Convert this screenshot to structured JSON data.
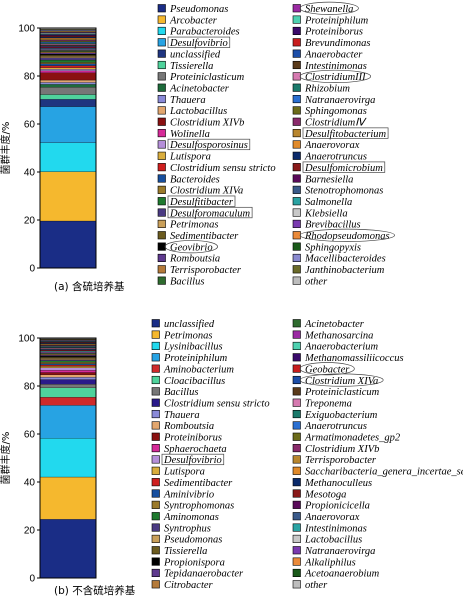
{
  "chart_data": [
    {
      "type": "bar",
      "stacked": true,
      "caption": "(a) 含硫培养基",
      "ylabel": "菌群丰度/%",
      "ylim": [
        0,
        100
      ],
      "yticks": [
        0,
        20,
        40,
        60,
        80,
        100
      ],
      "legend_columns": 2,
      "series": [
        {
          "name": "Pseudomonas",
          "value": 19.5,
          "color": "#1a2d86"
        },
        {
          "name": "Arcobacter",
          "value": 20.5,
          "color": "#f5b82e"
        },
        {
          "name": "Parabacteroides",
          "value": 12.0,
          "color": "#22d9ee"
        },
        {
          "name": "Desulfovibrio",
          "value": 15.0,
          "color": "#27a3e3",
          "boxed": true
        },
        {
          "name": "unclassified",
          "value": 3.0,
          "color": "#1f3580"
        },
        {
          "name": "Tissierella",
          "value": 2.0,
          "color": "#4fd39c"
        },
        {
          "name": "Proteiniclasticum",
          "value": 3.0,
          "color": "#777777"
        },
        {
          "name": "Acinetobacter",
          "value": 1.2,
          "color": "#1d6b3b"
        },
        {
          "name": "Thauera",
          "value": 0.8,
          "color": "#8a8ad8"
        },
        {
          "name": "Lactobacillus",
          "value": 1.0,
          "color": "#e2a66e"
        },
        {
          "name": "Clostridium XIVb",
          "value": 3.0,
          "color": "#8a1111"
        },
        {
          "name": "Wolinella",
          "value": 0.8,
          "color": "#d62a98"
        },
        {
          "name": "Desulfosporosinus",
          "value": 0.7,
          "color": "#b58fd9",
          "boxed": true
        },
        {
          "name": "Lutispora",
          "value": 0.6,
          "color": "#d9ad3d"
        },
        {
          "name": "Clostridium sensu stricto",
          "value": 0.9,
          "color": "#cf1f1f"
        },
        {
          "name": "Bacteroides",
          "value": 0.8,
          "color": "#174f9e"
        },
        {
          "name": "Clostridium XIVa",
          "value": 0.5,
          "color": "#9b7a2a"
        },
        {
          "name": "Desulfitibacter",
          "value": 1.0,
          "color": "#1e7a2e",
          "boxed": true
        },
        {
          "name": "Desulforomaculum",
          "value": 1.0,
          "color": "#4a3a82",
          "boxed": true
        },
        {
          "name": "Petrimonas",
          "value": 0.5,
          "color": "#caa05a"
        },
        {
          "name": "Sedimentibacter",
          "value": 0.5,
          "color": "#6b5b1f"
        },
        {
          "name": "Geovibrio",
          "value": 0.5,
          "color": "#000000",
          "circled": true
        },
        {
          "name": "Romboutsia",
          "value": 0.5,
          "color": "#5f3a8f"
        },
        {
          "name": "Terrisporobacter",
          "value": 0.5,
          "color": "#b47a3a"
        },
        {
          "name": "Bacillus",
          "value": 0.5,
          "color": "#2e6b2e"
        },
        {
          "name": "Shewanella",
          "value": 0.4,
          "color": "#9b2aa3",
          "circled": true
        },
        {
          "name": "Proteiniphilum",
          "value": 0.4,
          "color": "#4ed1b0"
        },
        {
          "name": "Proteiniborus",
          "value": 0.4,
          "color": "#3a0a6b"
        },
        {
          "name": "Brevundimonas",
          "value": 0.4,
          "color": "#c81d1d"
        },
        {
          "name": "Anaerobacter",
          "value": 0.4,
          "color": "#1d4ea8"
        },
        {
          "name": "Intestinimonas",
          "value": 0.4,
          "color": "#5a3a1a"
        },
        {
          "name": "ClostridiumIII",
          "value": 0.4,
          "color": "#d67ab0",
          "circled": true
        },
        {
          "name": "Rhizobium",
          "value": 0.4,
          "color": "#1a7a6b"
        },
        {
          "name": "Natranaerovirga",
          "value": 0.4,
          "color": "#2a6fd1"
        },
        {
          "name": "Sphingomonas",
          "value": 0.4,
          "color": "#6b6b1a"
        },
        {
          "name": "ClostridiumⅣ",
          "value": 0.4,
          "color": "#8a2a6b"
        },
        {
          "name": "Desulfitobacterium",
          "value": 0.4,
          "color": "#b8862e",
          "boxed": true
        },
        {
          "name": "Anaerovorax",
          "value": 0.4,
          "color": "#e08a2a"
        },
        {
          "name": "Anaerotruncus",
          "value": 0.4,
          "color": "#0a2a6b"
        },
        {
          "name": "Desulfomicrobium",
          "value": 0.4,
          "color": "#8a1a1a",
          "boxed": true
        },
        {
          "name": "Barnesiella",
          "value": 0.4,
          "color": "#5a0a5a"
        },
        {
          "name": "Stenotrophomonas",
          "value": 0.3,
          "color": "#3a5a8a"
        },
        {
          "name": "Salmonella",
          "value": 0.3,
          "color": "#2aa3a3"
        },
        {
          "name": "Klebsiella",
          "value": 0.3,
          "color": "#c8c8c8"
        },
        {
          "name": "Brevibacillus",
          "value": 0.3,
          "color": "#7a3ab0"
        },
        {
          "name": "Rhodopseudomonas",
          "value": 0.3,
          "color": "#ea8a3a",
          "circled": true
        },
        {
          "name": "Sphingopyxis",
          "value": 0.3,
          "color": "#1a5a1a"
        },
        {
          "name": "Macellibacteroides",
          "value": 0.3,
          "color": "#8a8ad0"
        },
        {
          "name": "Janthinobacterium",
          "value": 0.3,
          "color": "#6b6b2a"
        },
        {
          "name": "other",
          "value": 0.5,
          "color": "#bdbdbd"
        }
      ]
    },
    {
      "type": "bar",
      "stacked": true,
      "caption": "(b) 不含硫培养基",
      "ylabel": "菌群丰度/%",
      "ylim": [
        0,
        100
      ],
      "yticks": [
        0,
        20,
        40,
        60,
        80,
        100
      ],
      "legend_columns": 2,
      "series": [
        {
          "name": "unclassified",
          "value": 25.0,
          "color": "#1a2d86"
        },
        {
          "name": "Petrimonas",
          "value": 18.0,
          "color": "#f5b82e"
        },
        {
          "name": "Lysinibacillus",
          "value": 16.5,
          "color": "#22d9ee"
        },
        {
          "name": "Proteiniphilum",
          "value": 14.0,
          "color": "#27a3e3"
        },
        {
          "name": "Aminobacterium",
          "value": 3.5,
          "color": "#cf2a2a"
        },
        {
          "name": "Cloacibacillus",
          "value": 4.0,
          "color": "#4fd39c"
        },
        {
          "name": "Bacillus",
          "value": 1.5,
          "color": "#777777"
        },
        {
          "name": "Clostridium sensu stricto",
          "value": 2.0,
          "color": "#2a1a8a"
        },
        {
          "name": "Thauera",
          "value": 1.0,
          "color": "#8a8ad8"
        },
        {
          "name": "Romboutsia",
          "value": 1.0,
          "color": "#e2a66e"
        },
        {
          "name": "Proteiniborus",
          "value": 1.0,
          "color": "#8a1111"
        },
        {
          "name": "Sphaerochaeta",
          "value": 1.0,
          "color": "#d62a98"
        },
        {
          "name": "Desulfovibrio",
          "value": 1.0,
          "color": "#b58fd9",
          "boxed": true
        },
        {
          "name": "Lutispora",
          "value": 0.6,
          "color": "#d9ad3d"
        },
        {
          "name": "Sedimentibacter",
          "value": 0.6,
          "color": "#cf1f1f"
        },
        {
          "name": "Aminivibrio",
          "value": 0.6,
          "color": "#174f9e"
        },
        {
          "name": "Syntrophomonas",
          "value": 0.6,
          "color": "#9b7a2a"
        },
        {
          "name": "Aminomonas",
          "value": 0.6,
          "color": "#1e7a2e"
        },
        {
          "name": "Syntrophus",
          "value": 0.5,
          "color": "#4a3a82"
        },
        {
          "name": "Pseudomonas",
          "value": 0.5,
          "color": "#caa05a"
        },
        {
          "name": "Tissierella",
          "value": 0.5,
          "color": "#6b5b1f"
        },
        {
          "name": "Propionispora",
          "value": 0.5,
          "color": "#000000"
        },
        {
          "name": "Tepidanaerobacter",
          "value": 0.4,
          "color": "#5f3a8f"
        },
        {
          "name": "Citrobacter",
          "value": 0.4,
          "color": "#b47a3a"
        },
        {
          "name": "Acinetobacter",
          "value": 0.4,
          "color": "#2e6b2e"
        },
        {
          "name": "Methanosarcina",
          "value": 0.4,
          "color": "#9b2aa3"
        },
        {
          "name": "Anaerobacterium",
          "value": 0.4,
          "color": "#4ed1b0"
        },
        {
          "name": "Methanomassiliicoccus",
          "value": 0.3,
          "color": "#3a0a6b"
        },
        {
          "name": "Geobacter",
          "value": 0.3,
          "color": "#c81d1d",
          "circled": true
        },
        {
          "name": "Clostridium XIVa",
          "value": 0.3,
          "color": "#1d4ea8",
          "circled": true
        },
        {
          "name": "Proteiniclasticum",
          "value": 0.3,
          "color": "#5a3a1a"
        },
        {
          "name": "Treponema",
          "value": 0.3,
          "color": "#d67ab0"
        },
        {
          "name": "Exiguobacterium",
          "value": 0.3,
          "color": "#1a7a6b"
        },
        {
          "name": "Anaerotruncus",
          "value": 0.3,
          "color": "#2a6fd1"
        },
        {
          "name": "Armatimonadetes_gp2",
          "value": 0.3,
          "color": "#6b6b1a"
        },
        {
          "name": "Clostridium XIVb",
          "value": 0.3,
          "color": "#8a2a6b"
        },
        {
          "name": "Terrisporobacter",
          "value": 0.3,
          "color": "#b8862e"
        },
        {
          "name": "Saccharibacteria_genera_incertae_sedis",
          "value": 0.3,
          "color": "#e08a2a"
        },
        {
          "name": "Methanoculleus",
          "value": 0.3,
          "color": "#0a2a6b"
        },
        {
          "name": "Mesotoga",
          "value": 0.3,
          "color": "#8a1a1a"
        },
        {
          "name": "Propionicicella",
          "value": 0.2,
          "color": "#5a0a5a"
        },
        {
          "name": "Anaerovorax",
          "value": 0.2,
          "color": "#3a5a8a"
        },
        {
          "name": "Intestinimonas",
          "value": 0.2,
          "color": "#2aa3a3"
        },
        {
          "name": "Lactobacillus",
          "value": 0.2,
          "color": "#c8c8c8"
        },
        {
          "name": "Natranaerovirga",
          "value": 0.2,
          "color": "#7a3ab0"
        },
        {
          "name": "Alkaliphilus",
          "value": 0.2,
          "color": "#ea8a3a"
        },
        {
          "name": "Acetoanaerobium",
          "value": 0.2,
          "color": "#1a5a1a"
        },
        {
          "name": "other",
          "value": 0.4,
          "color": "#bdbdbd"
        }
      ]
    }
  ]
}
